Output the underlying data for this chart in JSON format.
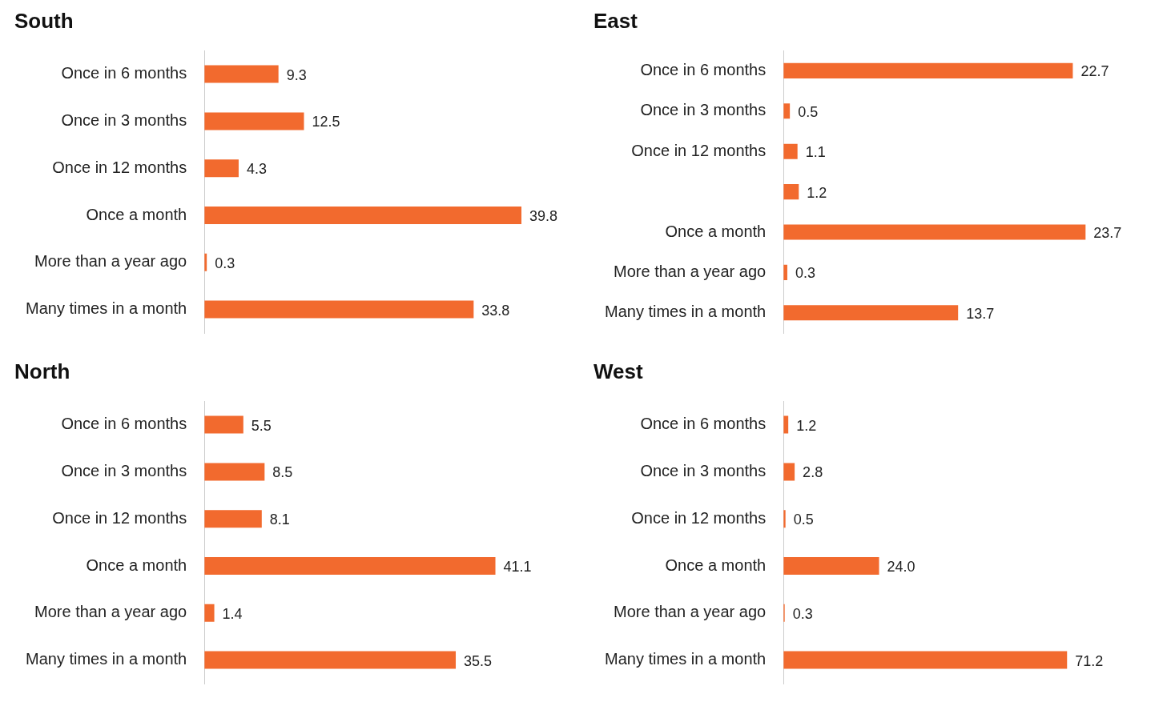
{
  "chart_data": [
    {
      "type": "bar",
      "orientation": "horizontal",
      "title": "South",
      "categories": [
        "Once in 6 months",
        "Once in 3 months",
        "Once in 12 months",
        "Once a month",
        "More than a year ago",
        "Many times in a month"
      ],
      "values": [
        9.3,
        12.5,
        4.3,
        39.8,
        0.3,
        33.8
      ],
      "color": "#f26a2e",
      "data_labels": true,
      "grid": false,
      "tick_labels": "y"
    },
    {
      "type": "bar",
      "orientation": "horizontal",
      "title": "East",
      "categories": [
        "Once in 6 months",
        "Once in 3 months",
        "Once in 12 months",
        null,
        "Once a month",
        "More than a year ago",
        "Many times in a month"
      ],
      "values": [
        22.7,
        0.5,
        1.1,
        1.2,
        23.7,
        0.3,
        13.7
      ],
      "color": "#f26a2e",
      "data_labels": true,
      "grid": false,
      "tick_labels": "y"
    },
    {
      "type": "bar",
      "orientation": "horizontal",
      "title": "North",
      "categories": [
        "Once in 6 months",
        "Once in 3 months",
        "Once in 12 months",
        "Once a month",
        "More than a year ago",
        "Many times in a month"
      ],
      "values": [
        5.5,
        8.5,
        8.1,
        41.1,
        1.4,
        35.5
      ],
      "color": "#f26a2e",
      "data_labels": true,
      "grid": false,
      "tick_labels": "y"
    },
    {
      "type": "bar",
      "orientation": "horizontal",
      "title": "West",
      "categories": [
        "Once in 6 months",
        "Once in 3 months",
        "Once in 12 months",
        "Once a month",
        "More than a year ago",
        "Many times in a month"
      ],
      "values": [
        1.2,
        2.8,
        0.5,
        24.0,
        0.3,
        71.2
      ],
      "value_labels": [
        "1.2",
        "2.8",
        "0.5",
        "24.0",
        "0.3",
        "71.2"
      ],
      "color": "#f26a2e",
      "grid": false,
      "tick_labels": "y"
    }
  ]
}
